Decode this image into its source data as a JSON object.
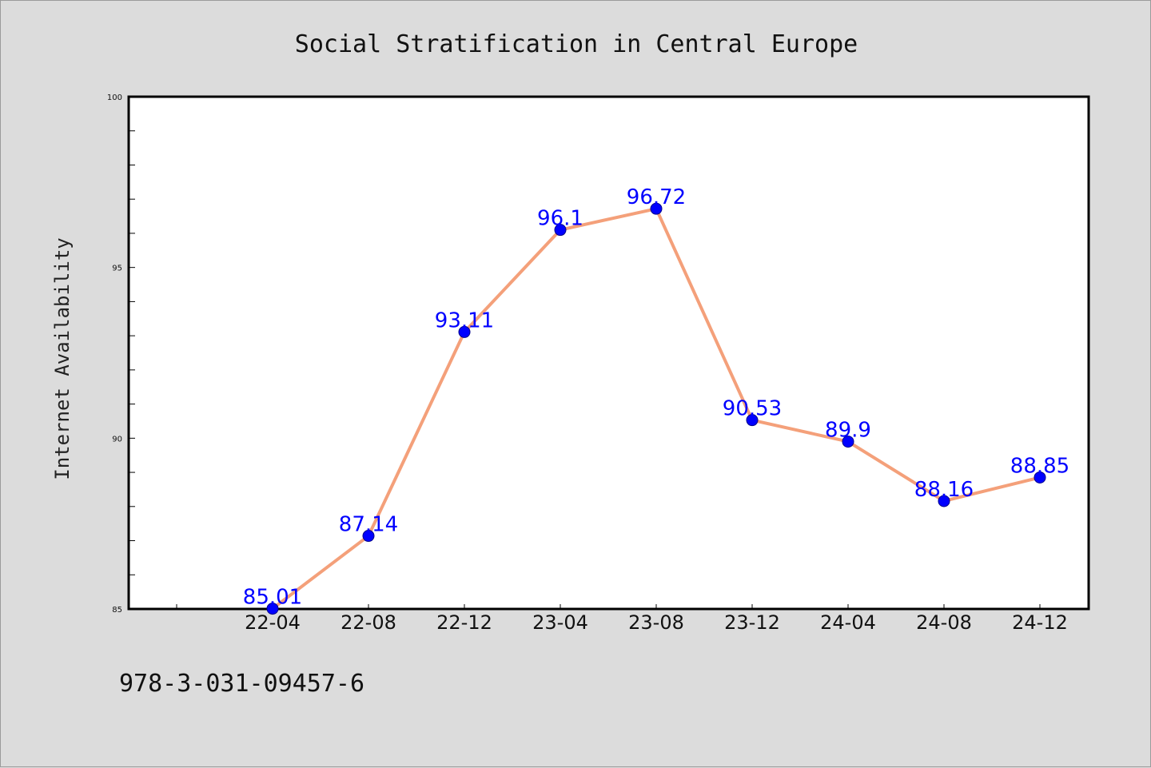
{
  "chart_data": {
    "type": "line",
    "title": "Social Stratification in Central Europe",
    "xlabel": "",
    "ylabel": "Internet Availability",
    "categories": [
      "22-04",
      "22-08",
      "22-12",
      "23-04",
      "23-08",
      "23-12",
      "24-04",
      "24-08",
      "24-12"
    ],
    "series": [
      {
        "values": [
          85.01,
          87.14,
          93.11,
          96.1,
          96.72,
          90.53,
          89.9,
          88.16,
          88.85
        ],
        "labels": [
          "85.01",
          "87.14",
          "93.11",
          "96.1",
          "96.72",
          "90.53",
          "89.9",
          "88.16",
          "88.85"
        ],
        "line_color": "#f4a07a",
        "marker_color": "#0000ff"
      }
    ],
    "ylim": [
      85,
      100
    ],
    "yticks": [
      85,
      90,
      95,
      100
    ],
    "grid": false,
    "legend": "none"
  },
  "footer": {
    "isbn": "978-3-031-09457-6"
  },
  "colors": {
    "background": "#dcdcdc",
    "plot_background": "#ffffff",
    "line": "#f4a07a",
    "marker": "#0000ff",
    "data_label": "#0000ff"
  }
}
